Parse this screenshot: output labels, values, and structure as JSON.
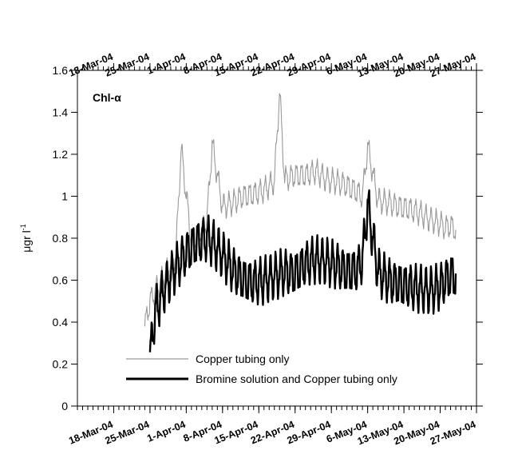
{
  "chart_data": {
    "type": "line",
    "panel_label": "Chl-α",
    "ylabel": "μgr l",
    "ylabel_superscript": "-1",
    "x_axis_type": "date",
    "xlim": [
      "2004-03-11",
      "2004-05-27"
    ],
    "ylim": [
      0,
      1.6
    ],
    "y_ticks": [
      0,
      0.2,
      0.4,
      0.6,
      0.8,
      1,
      1.2,
      1.4,
      1.6
    ],
    "y_tick_labels": [
      "0",
      "0.2",
      "0.4",
      "0.6",
      "0.8",
      "1",
      "1.2",
      "1.4",
      "1.6"
    ],
    "x_ticks": [
      "2004-03-18",
      "2004-03-25",
      "2004-04-01",
      "2004-04-08",
      "2004-04-15",
      "2004-04-22",
      "2004-04-29",
      "2004-05-06",
      "2004-05-13",
      "2004-05-20",
      "2004-05-27"
    ],
    "x_tick_labels": [
      "18-Mar-04",
      "25-Mar-04",
      "1-Apr-04",
      "8-Apr-04",
      "15-Apr-04",
      "22-Apr-04",
      "29-Apr-04",
      "6-May-04",
      "13-May-04",
      "20-May-04",
      "27-May-04"
    ],
    "legend": {
      "placement": "bottom-center"
    },
    "series": [
      {
        "name": "Copper tubing only",
        "color": "#999999",
        "x": [
          "2004-03-24",
          "2004-03-25",
          "2004-03-26",
          "2004-03-28",
          "2004-03-30",
          "2004-03-31",
          "2004-04-02",
          "2004-04-04",
          "2004-04-05",
          "2004-04-06",
          "2004-04-08",
          "2004-04-10",
          "2004-04-12",
          "2004-04-14",
          "2004-04-16",
          "2004-04-18",
          "2004-04-19",
          "2004-04-20",
          "2004-04-22",
          "2004-04-24",
          "2004-04-26",
          "2004-04-28",
          "2004-04-30",
          "2004-05-02",
          "2004-05-04",
          "2004-05-05",
          "2004-05-06",
          "2004-05-08",
          "2004-05-10",
          "2004-05-12",
          "2004-05-14",
          "2004-05-16",
          "2004-05-18",
          "2004-05-20",
          "2004-05-21",
          "2004-05-22",
          "2004-05-23"
        ],
        "y": [
          0.38,
          0.5,
          0.55,
          0.63,
          0.72,
          1.23,
          0.78,
          0.84,
          0.89,
          1.25,
          0.95,
          0.97,
          1.0,
          1.01,
          1.03,
          1.07,
          1.5,
          1.08,
          1.1,
          1.1,
          1.12,
          1.08,
          1.07,
          1.05,
          1.02,
          1.0,
          1.24,
          0.98,
          0.97,
          0.95,
          0.94,
          0.92,
          0.89,
          0.87,
          0.85,
          0.86,
          0.84
        ]
      },
      {
        "name": "Bromine solution and Copper tubing only",
        "color": "#000000",
        "x": [
          "2004-03-25",
          "2004-03-26",
          "2004-03-28",
          "2004-03-30",
          "2004-04-01",
          "2004-04-03",
          "2004-04-05",
          "2004-04-06",
          "2004-04-08",
          "2004-04-10",
          "2004-04-12",
          "2004-04-14",
          "2004-04-16",
          "2004-04-18",
          "2004-04-20",
          "2004-04-22",
          "2004-04-24",
          "2004-04-26",
          "2004-04-28",
          "2004-04-30",
          "2004-05-02",
          "2004-05-04",
          "2004-05-05",
          "2004-05-06",
          "2004-05-08",
          "2004-05-10",
          "2004-05-12",
          "2004-05-14",
          "2004-05-16",
          "2004-05-18",
          "2004-05-20",
          "2004-05-21",
          "2004-05-22",
          "2004-05-23"
        ],
        "y": [
          0.23,
          0.45,
          0.57,
          0.66,
          0.73,
          0.78,
          0.8,
          0.78,
          0.72,
          0.65,
          0.6,
          0.59,
          0.6,
          0.62,
          0.64,
          0.63,
          0.68,
          0.7,
          0.69,
          0.67,
          0.64,
          0.65,
          0.7,
          0.96,
          0.64,
          0.6,
          0.58,
          0.57,
          0.56,
          0.55,
          0.57,
          0.6,
          0.62,
          0.62
        ]
      }
    ],
    "oscillation": {
      "Copper tubing only": 0.05,
      "Bromine solution and Copper tubing only": 0.09
    }
  }
}
